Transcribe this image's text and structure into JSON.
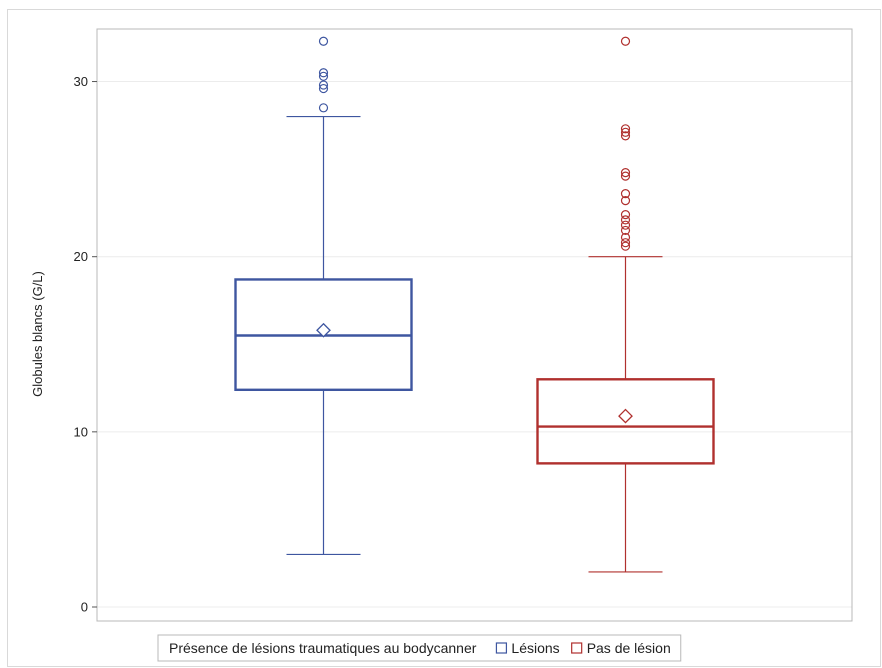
{
  "chart_data": {
    "type": "boxplot",
    "title": "",
    "xlabel": "",
    "ylabel": "Globules blancs (G/L)",
    "ylim": [
      -0.8,
      33.0
    ],
    "yticks": [
      0,
      10,
      20,
      30
    ],
    "grid": true,
    "legend": {
      "title": "Présence de lésions traumatiques au bodycanner",
      "position": "bottom",
      "entries": [
        "Lésions",
        "Pas de lésion"
      ]
    },
    "series": [
      {
        "name": "Lésions",
        "color": "#3e56a0",
        "whisker_low": 3.0,
        "q1": 12.4,
        "median": 15.5,
        "q3": 18.7,
        "whisker_high": 28.0,
        "mean": 15.8,
        "outliers": [
          32.3,
          30.5,
          30.3,
          29.8,
          29.6,
          28.5
        ]
      },
      {
        "name": "Pas de lésion",
        "color": "#b0302e",
        "whisker_low": 2.0,
        "q1": 8.2,
        "median": 10.3,
        "q3": 13.0,
        "whisker_high": 20.0,
        "mean": 10.9,
        "outliers": [
          32.3,
          27.3,
          27.1,
          26.9,
          24.8,
          24.6,
          23.6,
          23.2,
          22.4,
          22.1,
          21.8,
          21.5,
          21.1,
          20.8,
          20.6
        ]
      }
    ]
  }
}
